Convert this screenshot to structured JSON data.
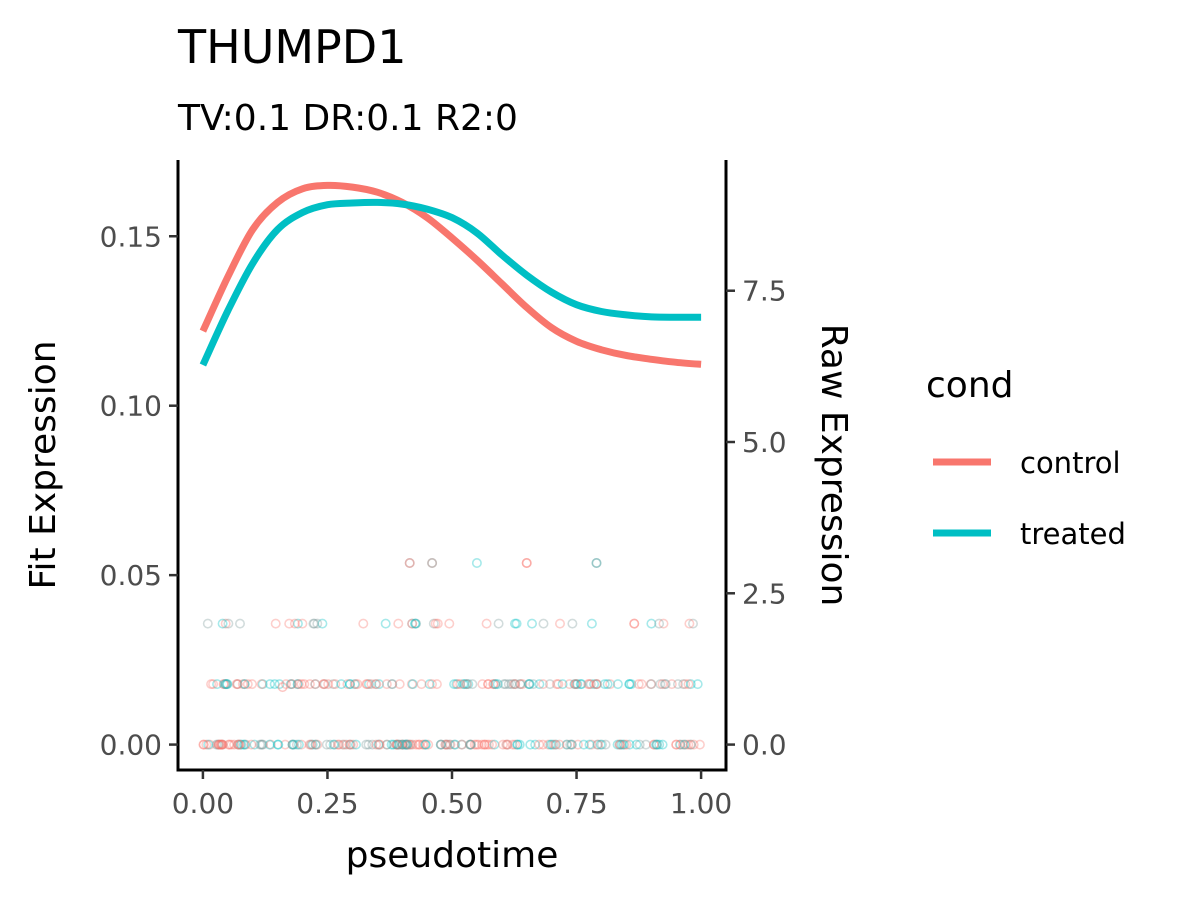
{
  "chart_data": {
    "type": "line",
    "title": "THUMPD1",
    "subtitle": "TV:0.1 DR:0.1 R2:0",
    "xlabel": "pseudotime",
    "ylabel": "Fit Expression",
    "y2label": "Raw Expression",
    "xlim": [
      -0.05,
      1.05
    ],
    "ylim": [
      -0.0075,
      0.1725
    ],
    "y2lim": [
      -0.42,
      9.66
    ],
    "xticks": [
      "0.00",
      "0.25",
      "0.50",
      "0.75",
      "1.00"
    ],
    "yticks": [
      "0.00",
      "0.05",
      "0.10",
      "0.15"
    ],
    "y2ticks": [
      "0.0",
      "2.5",
      "5.0",
      "7.5"
    ],
    "grid": false,
    "legend": {
      "title": "cond",
      "position": "right",
      "entries": [
        {
          "label": "control",
          "color": "#F8766D"
        },
        {
          "label": "treated",
          "color": "#00BFC4"
        }
      ]
    },
    "series": [
      {
        "name": "control",
        "color": "#F8766D",
        "x": [
          0.0,
          0.05,
          0.1,
          0.15,
          0.2,
          0.25,
          0.3,
          0.35,
          0.4,
          0.45,
          0.5,
          0.55,
          0.6,
          0.65,
          0.7,
          0.75,
          0.8,
          0.85,
          0.9,
          0.95,
          1.0
        ],
        "y": [
          0.122,
          0.138,
          0.152,
          0.16,
          0.164,
          0.165,
          0.1645,
          0.163,
          0.16,
          0.1555,
          0.1495,
          0.143,
          0.136,
          0.129,
          0.123,
          0.119,
          0.1165,
          0.1148,
          0.1137,
          0.1128,
          0.1122
        ]
      },
      {
        "name": "treated",
        "color": "#00BFC4",
        "x": [
          0.0,
          0.05,
          0.1,
          0.15,
          0.2,
          0.25,
          0.3,
          0.35,
          0.4,
          0.45,
          0.5,
          0.55,
          0.6,
          0.65,
          0.7,
          0.75,
          0.8,
          0.85,
          0.9,
          0.95,
          1.0
        ],
        "y": [
          0.112,
          0.128,
          0.142,
          0.152,
          0.157,
          0.1593,
          0.1598,
          0.16,
          0.1595,
          0.158,
          0.1555,
          0.151,
          0.1445,
          0.1385,
          0.1335,
          0.1298,
          0.1278,
          0.1268,
          0.1262,
          0.1261,
          0.1261
        ]
      }
    ],
    "raw_points": {
      "levels_raw": [
        0,
        1,
        2,
        3
      ],
      "level_counts": [
        200,
        140,
        42,
        5
      ],
      "high_points": [
        {
          "x": 0.415,
          "y": 3,
          "cond": "control"
        },
        {
          "x": 0.46,
          "y": 3,
          "cond": "control"
        },
        {
          "x": 0.65,
          "y": 3,
          "cond": "control"
        },
        {
          "x": 0.79,
          "y": 3,
          "cond": "treated"
        },
        {
          "x": 0.16,
          "y": 0.95,
          "cond": "control"
        }
      ],
      "colors": {
        "control": "#F8766D",
        "treated": "#00BFC4",
        "overlap": "#7F9B9A"
      },
      "alpha": 0.3
    }
  }
}
